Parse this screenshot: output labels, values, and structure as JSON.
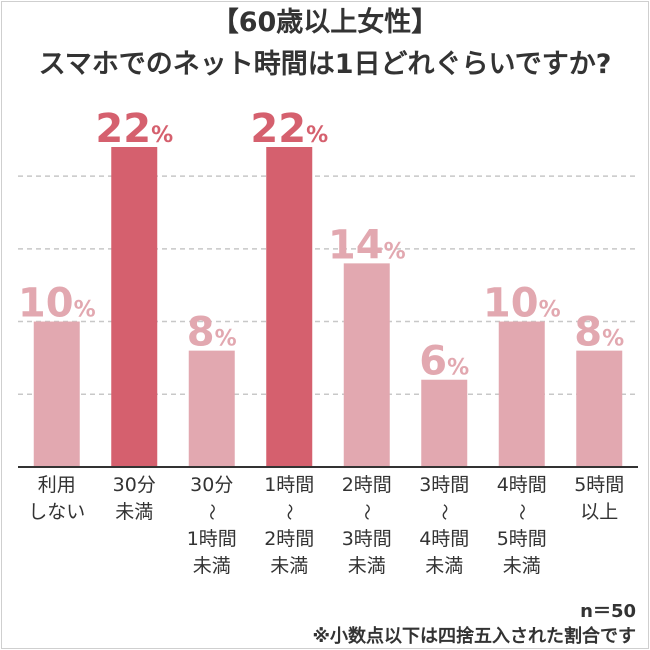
{
  "title_line1": "【60歳以上女性】",
  "title_line2": "スマホでのネット時間は1日どれぐらいですか?",
  "sample_size": "n＝50",
  "footnote": "※小数点以下は四捨五入された割合です",
  "colors": {
    "highlight": "#d5606e",
    "normal": "#e2a8b0",
    "axis": "#333333",
    "grid": "#c8c8c8"
  },
  "chart_data": {
    "type": "bar",
    "categories": [
      [
        "利用",
        "しない"
      ],
      [
        "30分",
        "未満"
      ],
      [
        "30分",
        "〜",
        "1時間",
        "未満"
      ],
      [
        "1時間",
        "〜",
        "2時間",
        "未満"
      ],
      [
        "2時間",
        "〜",
        "3時間",
        "未満"
      ],
      [
        "3時間",
        "〜",
        "4時間",
        "未満"
      ],
      [
        "4時間",
        "〜",
        "5時間",
        "未満"
      ],
      [
        "5時間",
        "以上"
      ]
    ],
    "values": [
      10,
      22,
      8,
      22,
      14,
      6,
      10,
      8
    ],
    "value_labels": [
      "10",
      "22",
      "8",
      "22",
      "14",
      "6",
      "10",
      "8"
    ],
    "unit": "%",
    "highlighted": [
      false,
      true,
      false,
      true,
      false,
      false,
      false,
      false
    ],
    "ylim": [
      0,
      22
    ],
    "grid": true
  }
}
